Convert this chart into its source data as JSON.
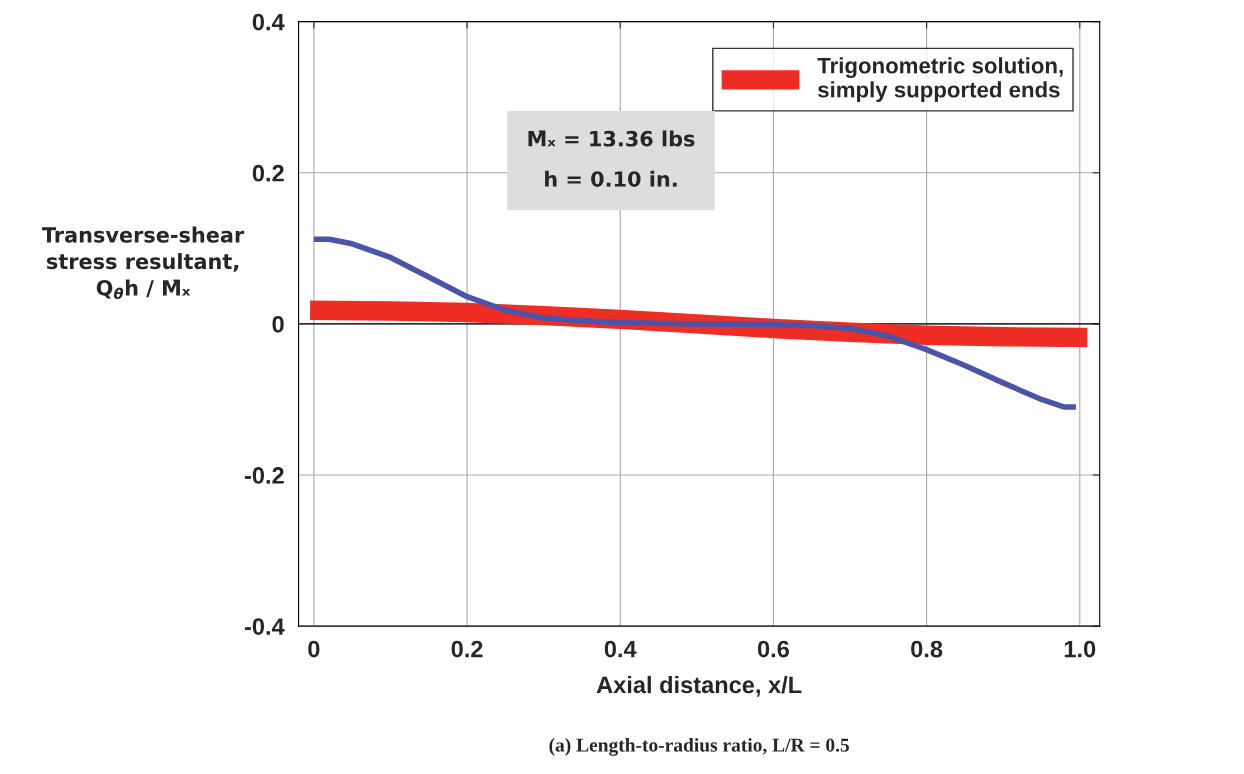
{
  "chart_data": {
    "type": "line",
    "xlabel": "Axial distance, x/L",
    "ylabel": "Transverse-shear\nstress resultant,\nQ$_{θ}$h / M̄ₓ",
    "xlim": [
      -0.02,
      1.026
    ],
    "ylim": [
      -0.4,
      0.4
    ],
    "xticks": [
      0,
      0.2,
      0.4,
      0.6,
      0.8,
      {
        "value": 1.0,
        "label": "1.0"
      }
    ],
    "yticks": [
      -0.4,
      -0.2,
      0,
      0.2,
      0.4
    ],
    "grid": true,
    "legend": "top right",
    "ref_lines": [
      {
        "axis": "y",
        "value": 0,
        "color": "#000000"
      }
    ],
    "series": [
      {
        "name": "Trigonometric solution,\nsimply supported ends",
        "color": "#ee2e24",
        "x": [
          -0.005,
          0.1,
          0.2,
          0.3,
          0.4,
          0.5,
          0.6,
          0.7,
          0.8,
          0.9,
          1.01
        ],
        "values": [
          0.018,
          0.017,
          0.015,
          0.011,
          0.006,
          0.0,
          -0.006,
          -0.011,
          -0.015,
          -0.017,
          -0.018
        ]
      },
      {
        "color": "#4a54a8",
        "x": [
          0.0,
          0.02,
          0.05,
          0.1,
          0.15,
          0.2,
          0.25,
          0.3,
          0.35,
          0.4,
          0.5,
          0.6,
          0.65,
          0.7,
          0.75,
          0.8,
          0.85,
          0.9,
          0.95,
          0.98,
          0.995
        ],
        "values": [
          0.112,
          0.112,
          0.106,
          0.088,
          0.062,
          0.036,
          0.018,
          0.008,
          0.004,
          0.002,
          0.0,
          -0.001,
          -0.002,
          -0.006,
          -0.016,
          -0.034,
          -0.055,
          -0.078,
          -0.1,
          -0.11,
          -0.11
        ]
      }
    ],
    "annotations": [
      "M̄ₓ = 13.36 lbs\n\nh = 0.10 in.",
      "(a) Length-to-radius ratio, L/R = 0.5"
    ]
  }
}
